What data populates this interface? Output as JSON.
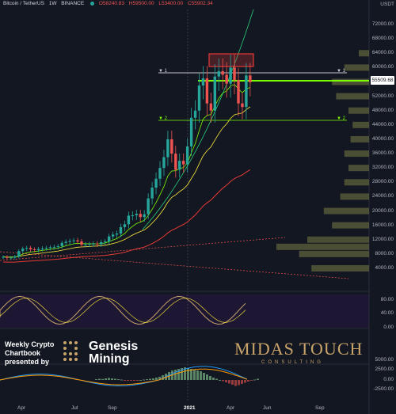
{
  "header": {
    "symbol": "Bitcoin / TetherUS",
    "interval": "1W",
    "exchange": "BINANCE",
    "open": "O58240.83",
    "high": "H59500.00",
    "low": "L53400.00",
    "close": "C55902.34"
  },
  "price_axis": {
    "currency": "USDT",
    "current_price": "55509.68",
    "ticks": [
      "72000.00",
      "68000.00",
      "64000.00",
      "60000.00",
      "56000.00",
      "52000.00",
      "48000.00",
      "44000.00",
      "40000.00",
      "36000.00",
      "32000.00",
      "28000.00",
      "24000.00",
      "20000.00",
      "16000.00",
      "12000.00",
      "8000.00",
      "4000.00"
    ]
  },
  "osc_axis": {
    "ticks": [
      "80.00",
      "40.00",
      "0.00"
    ]
  },
  "macd_axis": {
    "ticks": [
      "5000.00",
      "2500.00",
      "0.00",
      "-2500.00"
    ]
  },
  "time_axis": {
    "labels": [
      "Apr",
      "Jul",
      "Sep",
      "2021",
      "Apr",
      "Jun",
      "Sep"
    ]
  },
  "lines": {
    "level_1": "1",
    "level_2": "2"
  },
  "branding": {
    "weekly_line1": "Weekly Crypto",
    "weekly_line2": "Chartbook",
    "weekly_line3": "presented by",
    "genesis_line1": "Genesis",
    "genesis_line2": "Mining",
    "midas": "MIDAS TOUCH",
    "consulting": "CONSULTING"
  },
  "colors": {
    "background": "#131722",
    "bull": "#26a69a",
    "bear": "#ef5350",
    "support": "#7cfc00",
    "resistance_box": "#e53935",
    "gold": "#c9a46a"
  },
  "chart_data": {
    "type": "candlestick",
    "title": "Bitcoin / TetherUS, 1W, BINANCE",
    "ylabel": "USDT",
    "ylim": [
      0,
      74000
    ],
    "weekly_close_approx": [
      7200,
      6900,
      7000,
      7300,
      8800,
      9500,
      9700,
      9300,
      9100,
      9400,
      9600,
      9700,
      9900,
      10000,
      10200,
      11100,
      11400,
      11600,
      11800,
      11500,
      10600,
      10700,
      10800,
      10900,
      10700,
      11300,
      11500,
      12900,
      13400,
      13700,
      15500,
      16300,
      18700,
      18800,
      19200,
      18300,
      19100,
      23500,
      26500,
      29000,
      32000,
      35000,
      40000,
      36000,
      31500,
      34000,
      33000,
      38000,
      46000,
      48000,
      55000,
      57000,
      50000,
      48000,
      57500,
      59000,
      58000,
      55500,
      60000,
      56500,
      50000,
      49000,
      57800,
      55900
    ],
    "level_1": 58000,
    "level_2": 44000,
    "current_price": 55509.68,
    "resistance_zone": [
      59500,
      64500
    ]
  }
}
